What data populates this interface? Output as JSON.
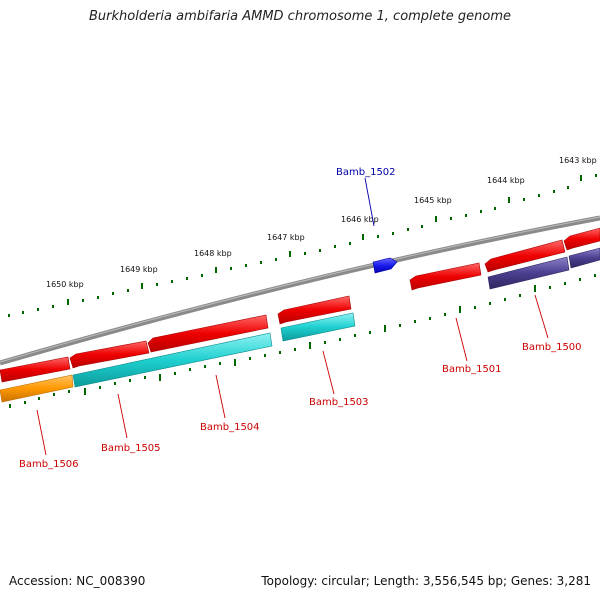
{
  "title": "Burkholderia ambifaria AMMD chromosome 1, complete genome",
  "footer": {
    "accession": "Accession: NC_008390",
    "summary": "Topology: circular; Length: 3,556,545 bp; Genes: 3,281"
  },
  "scale": {
    "ticks": [
      "1650 kbp",
      "1649 kbp",
      "1648 kbp",
      "1647 kbp",
      "1646 kbp",
      "1645 kbp",
      "1644 kbp",
      "1643 kbp"
    ]
  },
  "genes": [
    {
      "label": "Bamb_1502",
      "color": "#0000cc"
    },
    {
      "label": "Bamb_1500",
      "color": "#cc0000"
    },
    {
      "label": "Bamb_1501",
      "color": "#cc0000"
    },
    {
      "label": "Bamb_1503",
      "color": "#cc0000"
    },
    {
      "label": "Bamb_1504",
      "color": "#cc0000"
    },
    {
      "label": "Bamb_1505",
      "color": "#cc0000"
    },
    {
      "label": "Bamb_1506",
      "color": "#cc0000"
    }
  ],
  "colors": {
    "backbone": "#808080",
    "forward_cds": "#ee1111",
    "reverse_cds": "#11cccc",
    "orange_cds": "#ff9900",
    "purple_cds": "#4a3f8f",
    "blue_feature": "#1a1aee",
    "tick": "#006600"
  }
}
